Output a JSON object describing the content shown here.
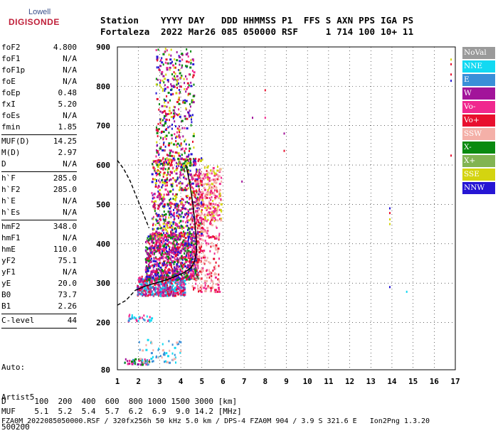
{
  "logo": {
    "line1": "Lowell",
    "line2": "DIGISONDE"
  },
  "header": {
    "row1": "Station    YYYY DAY   DDD HHMMSS P1  FFS S AXN PPS IGA PS",
    "row2": "Fortaleza  2022 Mar26 085 050000 RSF     1 714 100 10+ 11"
  },
  "params": [
    {
      "label": "foF2",
      "value": "4.800"
    },
    {
      "label": "foF1",
      "value": "N/A"
    },
    {
      "label": "foF1p",
      "value": "N/A"
    },
    {
      "label": "foE",
      "value": "N/A"
    },
    {
      "label": "foEp",
      "value": "0.48"
    },
    {
      "label": "fxI",
      "value": "5.20"
    },
    {
      "label": "foEs",
      "value": "N/A"
    },
    {
      "label": "fmin",
      "value": "1.85"
    },
    {
      "sep": true
    },
    {
      "label": "MUF(D)",
      "value": "14.25"
    },
    {
      "label": "M(D)",
      "value": "2.97"
    },
    {
      "label": "D",
      "value": "N/A"
    },
    {
      "sep": true
    },
    {
      "label": "h`F",
      "value": "285.0"
    },
    {
      "label": "h`F2",
      "value": "285.0"
    },
    {
      "label": "h`E",
      "value": "N/A"
    },
    {
      "label": "h`Es",
      "value": "N/A"
    },
    {
      "sep": true
    },
    {
      "label": "hmF2",
      "value": "348.0"
    },
    {
      "label": "hmF1",
      "value": "N/A"
    },
    {
      "label": "hmE",
      "value": "110.0"
    },
    {
      "label": "yF2",
      "value": "75.1"
    },
    {
      "label": "yF1",
      "value": "N/A"
    },
    {
      "label": "yE",
      "value": "20.0"
    },
    {
      "label": "B0",
      "value": "73.7"
    },
    {
      "label": "B1",
      "value": "2.26"
    },
    {
      "sep": true
    },
    {
      "label": "C-level",
      "value": "44"
    },
    {
      "sep": true
    }
  ],
  "auto": [
    "Auto:",
    "Artist5",
    "500200"
  ],
  "legend": [
    {
      "label": "NoVal",
      "color": "#9a9a9a"
    },
    {
      "label": "NNE",
      "color": "#12d9f2"
    },
    {
      "label": "E",
      "color": "#3a8fd8"
    },
    {
      "label": "W",
      "color": "#a2149a"
    },
    {
      "label": "Vo-",
      "color": "#f0288e"
    },
    {
      "label": "Vo+",
      "color": "#e8102e"
    },
    {
      "label": "SSW",
      "color": "#f4b0a8"
    },
    {
      "label": "X-",
      "color": "#0a8a10"
    },
    {
      "label": "X+",
      "color": "#82b452"
    },
    {
      "label": "SSE",
      "color": "#d4d410"
    },
    {
      "label": "NNW",
      "color": "#2616d4"
    }
  ],
  "chart_data": {
    "type": "scatter",
    "title": "",
    "xlabel": "",
    "ylabel": "",
    "xlim": [
      1,
      17
    ],
    "ylim": [
      80,
      900
    ],
    "xticks": [
      1,
      2,
      3,
      4,
      5,
      6,
      7,
      8,
      9,
      10,
      11,
      12,
      13,
      14,
      15,
      16,
      17
    ],
    "yticks": [
      80,
      200,
      300,
      400,
      500,
      600,
      700,
      800,
      900
    ],
    "grid": "dotted",
    "trace_curves": [
      {
        "name": "",
        "color": "#000000",
        "style": "solid",
        "points": [
          [
            1.85,
            282
          ],
          [
            2.3,
            292
          ],
          [
            2.8,
            300
          ],
          [
            3.3,
            308
          ],
          [
            3.8,
            318
          ],
          [
            4.2,
            328
          ],
          [
            4.5,
            340
          ],
          [
            4.65,
            355
          ],
          [
            4.72,
            372
          ],
          [
            4.76,
            382
          ]
        ]
      },
      {
        "name": "",
        "color": "#000000",
        "style": "dashed",
        "points": [
          [
            1.0,
            244
          ],
          [
            1.4,
            256
          ],
          [
            1.85,
            282
          ]
        ]
      },
      {
        "name": "",
        "color": "#000000",
        "style": "dashed",
        "points": [
          [
            1.0,
            612
          ],
          [
            1.3,
            590
          ],
          [
            1.6,
            560
          ],
          [
            1.9,
            520
          ],
          [
            2.2,
            480
          ],
          [
            2.5,
            440
          ]
        ]
      },
      {
        "name": "",
        "color": "#000000",
        "style": "solid",
        "points": [
          [
            4.76,
            382
          ],
          [
            4.72,
            420
          ],
          [
            4.65,
            465
          ],
          [
            4.55,
            510
          ],
          [
            4.4,
            560
          ],
          [
            4.25,
            600
          ]
        ]
      }
    ],
    "echo_clusters": [
      {
        "x": [
          1.9,
          4.2
        ],
        "y": [
          270,
          320
        ],
        "n": 520,
        "colors": [
          "#f0288e",
          "#a2149a",
          "#3a8fd8",
          "#12d9f2",
          "#e8102e"
        ]
      },
      {
        "x": [
          2.3,
          4.8
        ],
        "y": [
          310,
          430
        ],
        "n": 900,
        "colors": [
          "#f0288e",
          "#a2149a",
          "#e8102e",
          "#2616d4",
          "#0a8a10"
        ]
      },
      {
        "x": [
          2.6,
          5.0
        ],
        "y": [
          420,
          620
        ],
        "n": 700,
        "colors": [
          "#f0288e",
          "#a2149a",
          "#2616d4",
          "#e8102e",
          "#0a8a10",
          "#d4d410"
        ]
      },
      {
        "x": [
          2.8,
          4.6
        ],
        "y": [
          600,
          900
        ],
        "n": 420,
        "colors": [
          "#a2149a",
          "#2616d4",
          "#0a8a10",
          "#f0288e",
          "#d4d410",
          "#e8102e"
        ]
      },
      {
        "x": [
          4.5,
          5.8
        ],
        "y": [
          280,
          590
        ],
        "n": 420,
        "colors": [
          "#f4b0a8",
          "#f4b0a8",
          "#e8102e",
          "#f0288e"
        ]
      },
      {
        "x": [
          5.1,
          5.9
        ],
        "y": [
          460,
          600
        ],
        "n": 120,
        "colors": [
          "#d4d410",
          "#f0288e",
          "#f4b0a8"
        ]
      },
      {
        "x": [
          1.4,
          2.6
        ],
        "y": [
          205,
          222
        ],
        "n": 30,
        "colors": [
          "#3a8fd8",
          "#12d9f2",
          "#f0288e"
        ]
      },
      {
        "x": [
          1.3,
          2.5
        ],
        "y": [
          95,
          110
        ],
        "n": 50,
        "colors": [
          "#0a8a10",
          "#a2149a",
          "#f0288e",
          "#3a8fd8"
        ]
      },
      {
        "x": [
          2.0,
          4.0
        ],
        "y": [
          100,
          160
        ],
        "n": 60,
        "colors": [
          "#12d9f2",
          "#3a8fd8",
          "#f4b0a8"
        ]
      }
    ],
    "isolated_points": [
      {
        "x": 7.4,
        "y": 720,
        "color": "#a2149a"
      },
      {
        "x": 8.0,
        "y": 720,
        "color": "#f0288e"
      },
      {
        "x": 8.0,
        "y": 790,
        "color": "#e8102e"
      },
      {
        "x": 8.9,
        "y": 680,
        "color": "#a2149a"
      },
      {
        "x": 8.9,
        "y": 636,
        "color": "#e8102e"
      },
      {
        "x": 6.9,
        "y": 558,
        "color": "#a2149a"
      },
      {
        "x": 13.9,
        "y": 490,
        "color": "#2616d4"
      },
      {
        "x": 13.9,
        "y": 478,
        "color": "#e8102e"
      },
      {
        "x": 13.9,
        "y": 462,
        "color": "#d4d410"
      },
      {
        "x": 13.9,
        "y": 450,
        "color": "#d4d410"
      },
      {
        "x": 13.9,
        "y": 290,
        "color": "#2616d4"
      },
      {
        "x": 14.7,
        "y": 278,
        "color": "#12d9f2"
      },
      {
        "x": 16.8,
        "y": 868,
        "color": "#d4d410"
      },
      {
        "x": 16.8,
        "y": 856,
        "color": "#e8102e"
      },
      {
        "x": 16.8,
        "y": 830,
        "color": "#e8102e"
      },
      {
        "x": 16.8,
        "y": 814,
        "color": "#2616d4"
      },
      {
        "x": 16.8,
        "y": 624,
        "color": "#e8102e"
      }
    ]
  },
  "footer": {
    "row1": "D      100  200  400  600  800 1000 1500 3000 [km]",
    "row2": "MUF    5.1  5.2  5.4  5.7  6.2  6.9  9.0 14.2 [MHz]",
    "row3": "FZA0M_2022085050000.RSF / 320fx256h 50 kHz 5.0 km / DPS-4 FZA0M 904 / 3.9 S 321.6 E   Ion2Png 1.3.20"
  }
}
